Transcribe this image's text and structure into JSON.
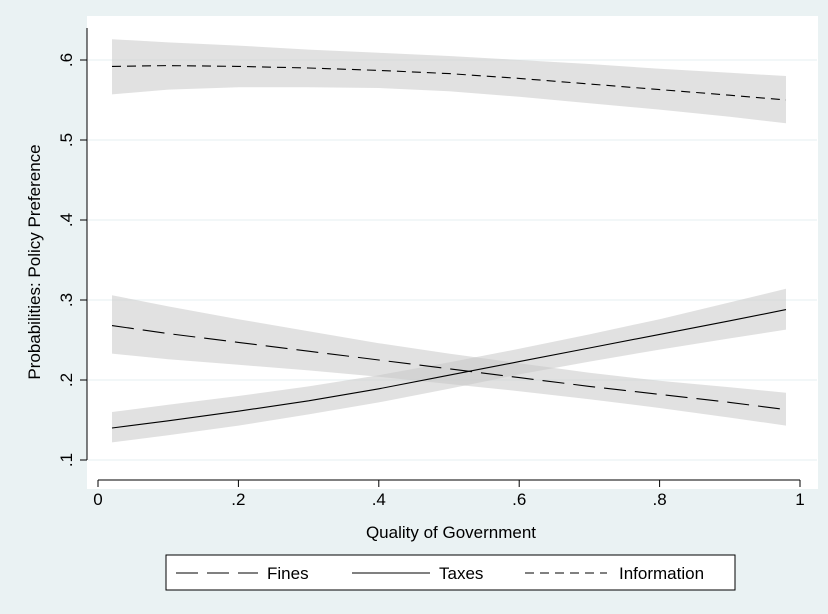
{
  "chart_data": {
    "type": "line",
    "xlabel": "Quality of Government",
    "ylabel": "Probabilities: Policy Preference",
    "xlim": [
      0,
      1
    ],
    "ylim": [
      0.1,
      0.6
    ],
    "x_ticks": [
      0,
      0.2,
      0.4,
      0.6,
      0.8,
      1
    ],
    "x_tick_labels": [
      "0",
      ".2",
      ".4",
      ".6",
      ".8",
      "1"
    ],
    "y_ticks": [
      0.1,
      0.2,
      0.3,
      0.4,
      0.5,
      0.6
    ],
    "y_tick_labels": [
      ".1",
      ".2",
      ".3",
      ".4",
      ".5",
      ".6"
    ],
    "grid": "horizontal",
    "legend_position": "bottom",
    "x": [
      0.02,
      0.1,
      0.2,
      0.3,
      0.4,
      0.5,
      0.6,
      0.7,
      0.8,
      0.9,
      0.98
    ],
    "series": [
      {
        "name": "Fines",
        "style": "long-dash",
        "values": [
          0.268,
          0.258,
          0.247,
          0.236,
          0.225,
          0.214,
          0.203,
          0.192,
          0.182,
          0.172,
          0.163
        ],
        "lower": [
          0.233,
          0.226,
          0.219,
          0.212,
          0.204,
          0.195,
          0.186,
          0.176,
          0.165,
          0.153,
          0.143
        ],
        "upper": [
          0.306,
          0.292,
          0.276,
          0.261,
          0.246,
          0.233,
          0.221,
          0.209,
          0.199,
          0.191,
          0.184
        ]
      },
      {
        "name": "Taxes",
        "style": "solid",
        "values": [
          0.14,
          0.149,
          0.161,
          0.174,
          0.189,
          0.206,
          0.223,
          0.24,
          0.257,
          0.274,
          0.288
        ],
        "lower": [
          0.122,
          0.131,
          0.143,
          0.157,
          0.172,
          0.189,
          0.207,
          0.223,
          0.238,
          0.252,
          0.263
        ],
        "upper": [
          0.16,
          0.169,
          0.18,
          0.192,
          0.206,
          0.222,
          0.239,
          0.257,
          0.276,
          0.297,
          0.314
        ]
      },
      {
        "name": "Information",
        "style": "short-dash",
        "values": [
          0.592,
          0.593,
          0.592,
          0.59,
          0.587,
          0.583,
          0.577,
          0.57,
          0.563,
          0.556,
          0.55
        ],
        "lower": [
          0.557,
          0.563,
          0.566,
          0.566,
          0.565,
          0.561,
          0.554,
          0.546,
          0.538,
          0.529,
          0.521
        ],
        "upper": [
          0.626,
          0.622,
          0.618,
          0.613,
          0.609,
          0.605,
          0.6,
          0.595,
          0.589,
          0.584,
          0.58
        ]
      }
    ]
  }
}
